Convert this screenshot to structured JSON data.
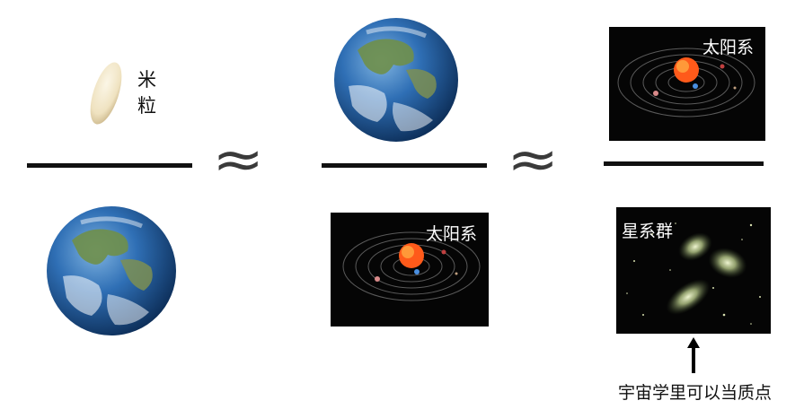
{
  "labels": {
    "rice_line1": "米",
    "rice_line2": "粒",
    "solar_system_top": "太阳系",
    "solar_system_bottom": "太阳系",
    "galaxy_group": "星系群",
    "caption": "宇宙学里可以当质点"
  },
  "symbols": {
    "approx_1": "≈",
    "approx_2": "≈"
  },
  "colors": {
    "background": "#ffffff",
    "fraction_bar": "#111111",
    "space": "#050505",
    "sun": "#ff5a1a",
    "ocean": "#2f6fb5",
    "galaxy_glow": "#c8d8a0"
  },
  "icons": [
    "rice-grain-icon",
    "earth-icon",
    "solar-system-icon",
    "galaxy-group-icon",
    "up-arrow-icon"
  ]
}
